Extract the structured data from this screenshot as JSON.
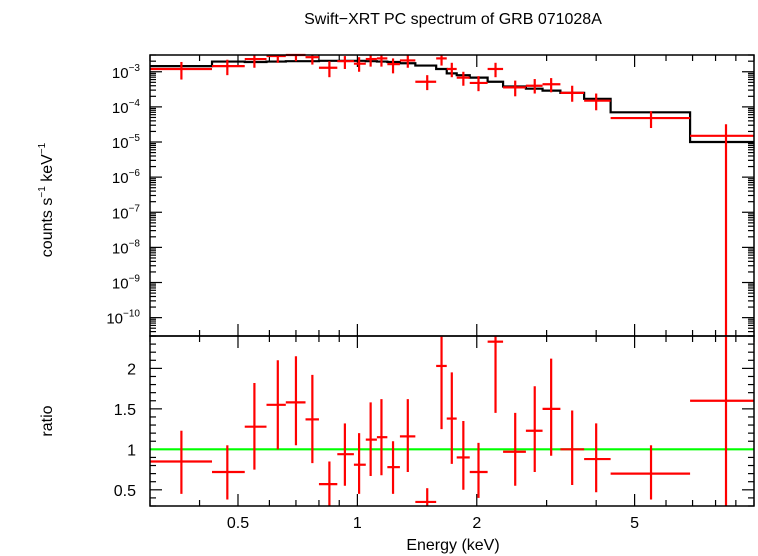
{
  "chart_data": [
    {
      "type": "scatter",
      "title": "Swift−XRT PC spectrum of GRB 071028A",
      "ylabel_base": "counts s",
      "ylabel_exp1": "−1",
      "ylabel_mid": " keV",
      "ylabel_exp2": "−1",
      "xscale": "log",
      "yscale": "log",
      "xlim": [
        0.3,
        10
      ],
      "ylim": [
        3e-11,
        0.003
      ],
      "y_ticks": [
        {
          "value": 0.001,
          "mant": "10",
          "exp": "−3"
        },
        {
          "value": 0.0001,
          "mant": "10",
          "exp": "−4"
        },
        {
          "value": 1e-05,
          "mant": "10",
          "exp": "−5"
        },
        {
          "value": 1e-06,
          "mant": "10",
          "exp": "−6"
        },
        {
          "value": 1e-07,
          "mant": "10",
          "exp": "−7"
        },
        {
          "value": 1e-08,
          "mant": "10",
          "exp": "−8"
        },
        {
          "value": 1e-09,
          "mant": "10",
          "exp": "−9"
        },
        {
          "value": 1e-10,
          "mant": "10",
          "exp": "−10"
        }
      ],
      "colors": {
        "data": "#ff0000",
        "model": "#000000"
      },
      "series": [
        {
          "kind": "data",
          "points": [
            {
              "x": 0.36,
              "xlo": 0.3,
              "xhi": 0.43,
              "y": 0.0012,
              "ylo": 0.0006,
              "yhi": 0.0019
            },
            {
              "x": 0.47,
              "xlo": 0.43,
              "xhi": 0.52,
              "y": 0.00145,
              "ylo": 0.0008,
              "yhi": 0.0022
            },
            {
              "x": 0.55,
              "xlo": 0.52,
              "xhi": 0.59,
              "y": 0.0023,
              "ylo": 0.0013,
              "yhi": 0.0032
            },
            {
              "x": 0.63,
              "xlo": 0.59,
              "xhi": 0.66,
              "y": 0.0028,
              "ylo": 0.0018,
              "yhi": 0.0036
            },
            {
              "x": 0.7,
              "xlo": 0.66,
              "xhi": 0.74,
              "y": 0.0031,
              "ylo": 0.002,
              "yhi": 0.004
            },
            {
              "x": 0.77,
              "xlo": 0.74,
              "xhi": 0.8,
              "y": 0.0026,
              "ylo": 0.0016,
              "yhi": 0.0034
            },
            {
              "x": 0.85,
              "xlo": 0.8,
              "xhi": 0.89,
              "y": 0.0013,
              "ylo": 0.0007,
              "yhi": 0.002
            },
            {
              "x": 0.93,
              "xlo": 0.89,
              "xhi": 0.98,
              "y": 0.002,
              "ylo": 0.0012,
              "yhi": 0.0028
            },
            {
              "x": 1.01,
              "xlo": 0.98,
              "xhi": 1.05,
              "y": 0.0017,
              "ylo": 0.001,
              "yhi": 0.0026
            },
            {
              "x": 1.08,
              "xlo": 1.05,
              "xhi": 1.12,
              "y": 0.0023,
              "ylo": 0.0014,
              "yhi": 0.0033
            },
            {
              "x": 1.15,
              "xlo": 1.12,
              "xhi": 1.19,
              "y": 0.0024,
              "ylo": 0.0014,
              "yhi": 0.0034
            },
            {
              "x": 1.23,
              "xlo": 1.19,
              "xhi": 1.28,
              "y": 0.00165,
              "ylo": 0.0009,
              "yhi": 0.0024
            },
            {
              "x": 1.34,
              "xlo": 1.28,
              "xhi": 1.4,
              "y": 0.0021,
              "ylo": 0.0013,
              "yhi": 0.003
            },
            {
              "x": 1.5,
              "xlo": 1.4,
              "xhi": 1.58,
              "y": 0.00052,
              "ylo": 0.0003,
              "yhi": 0.0008
            },
            {
              "x": 1.63,
              "xlo": 1.58,
              "xhi": 1.68,
              "y": 0.0024,
              "ylo": 0.0015,
              "yhi": 0.0034
            },
            {
              "x": 1.73,
              "xlo": 1.68,
              "xhi": 1.78,
              "y": 0.0012,
              "ylo": 0.0007,
              "yhi": 0.0018
            },
            {
              "x": 1.85,
              "xlo": 1.78,
              "xhi": 1.92,
              "y": 0.00068,
              "ylo": 0.0004,
              "yhi": 0.001
            },
            {
              "x": 2.02,
              "xlo": 1.92,
              "xhi": 2.13,
              "y": 0.00048,
              "ylo": 0.00028,
              "yhi": 0.00075
            },
            {
              "x": 2.23,
              "xlo": 2.13,
              "xhi": 2.33,
              "y": 0.0012,
              "ylo": 0.0007,
              "yhi": 0.0018
            },
            {
              "x": 2.5,
              "xlo": 2.33,
              "xhi": 2.66,
              "y": 0.00036,
              "ylo": 0.0002,
              "yhi": 0.00056
            },
            {
              "x": 2.8,
              "xlo": 2.66,
              "xhi": 2.93,
              "y": 0.0004,
              "ylo": 0.00024,
              "yhi": 0.00062
            },
            {
              "x": 3.08,
              "xlo": 2.93,
              "xhi": 3.25,
              "y": 0.00044,
              "ylo": 0.00026,
              "yhi": 0.00066
            },
            {
              "x": 3.48,
              "xlo": 3.25,
              "xhi": 3.73,
              "y": 0.00025,
              "ylo": 0.00014,
              "yhi": 0.0004
            },
            {
              "x": 4.0,
              "xlo": 3.73,
              "xhi": 4.35,
              "y": 0.00015,
              "ylo": 8e-05,
              "yhi": 0.00024
            },
            {
              "x": 5.5,
              "xlo": 4.35,
              "xhi": 6.9,
              "y": 4.8e-05,
              "ylo": 2.5e-05,
              "yhi": 7.5e-05
            },
            {
              "x": 8.5,
              "xlo": 6.9,
              "xhi": 10,
              "y": 1.5e-05,
              "ylo": 3e-11,
              "yhi": 3.2e-05
            }
          ]
        },
        {
          "kind": "model",
          "steps": [
            {
              "x0": 0.3,
              "x1": 0.43,
              "y": 0.00145
            },
            {
              "x0": 0.43,
              "x1": 0.52,
              "y": 0.00195
            },
            {
              "x0": 0.52,
              "x1": 0.59,
              "y": 0.0019
            },
            {
              "x0": 0.59,
              "x1": 0.66,
              "y": 0.00195
            },
            {
              "x0": 0.66,
              "x1": 0.74,
              "y": 0.002
            },
            {
              "x0": 0.74,
              "x1": 0.8,
              "y": 0.002
            },
            {
              "x0": 0.8,
              "x1": 0.89,
              "y": 0.00205
            },
            {
              "x0": 0.89,
              "x1": 0.98,
              "y": 0.00205
            },
            {
              "x0": 0.98,
              "x1": 1.05,
              "y": 0.00205
            },
            {
              "x0": 1.05,
              "x1": 1.12,
              "y": 0.002
            },
            {
              "x0": 1.12,
              "x1": 1.19,
              "y": 0.00195
            },
            {
              "x0": 1.19,
              "x1": 1.28,
              "y": 0.0019
            },
            {
              "x0": 1.28,
              "x1": 1.4,
              "y": 0.00175
            },
            {
              "x0": 1.4,
              "x1": 1.58,
              "y": 0.0015
            },
            {
              "x0": 1.58,
              "x1": 1.68,
              "y": 0.0012
            },
            {
              "x0": 1.68,
              "x1": 1.78,
              "y": 0.0009
            },
            {
              "x0": 1.78,
              "x1": 1.92,
              "y": 0.0008
            },
            {
              "x0": 1.92,
              "x1": 2.13,
              "y": 0.00068
            },
            {
              "x0": 2.13,
              "x1": 2.33,
              "y": 0.00052
            },
            {
              "x0": 2.33,
              "x1": 2.66,
              "y": 0.00038
            },
            {
              "x0": 2.66,
              "x1": 2.93,
              "y": 0.00033
            },
            {
              "x0": 2.93,
              "x1": 3.25,
              "y": 0.00029
            },
            {
              "x0": 3.25,
              "x1": 3.73,
              "y": 0.00025
            },
            {
              "x0": 3.73,
              "x1": 4.35,
              "y": 0.00017
            },
            {
              "x0": 4.35,
              "x1": 6.9,
              "y": 7e-05
            },
            {
              "x0": 6.9,
              "x1": 10,
              "y": 1e-05
            }
          ]
        }
      ]
    },
    {
      "type": "scatter",
      "xlabel": "Energy (keV)",
      "ylabel": "ratio",
      "xscale": "log",
      "xlim": [
        0.3,
        10
      ],
      "ylim": [
        0.3,
        2.4
      ],
      "x_ticks": [
        {
          "value": 0.5,
          "label": "0.5"
        },
        {
          "value": 1,
          "label": "1"
        },
        {
          "value": 2,
          "label": "2"
        },
        {
          "value": 5,
          "label": "5"
        }
      ],
      "y_ticks": [
        {
          "value": 0.5,
          "label": "0.5"
        },
        {
          "value": 1,
          "label": "1"
        },
        {
          "value": 1.5,
          "label": "1.5"
        },
        {
          "value": 2,
          "label": "2"
        }
      ],
      "reference_line": 1,
      "colors": {
        "data": "#ff0000",
        "reference": "#00ff00"
      },
      "series": [
        {
          "kind": "data",
          "points": [
            {
              "x": 0.36,
              "xlo": 0.3,
              "xhi": 0.43,
              "y": 0.85,
              "ylo": 0.45,
              "yhi": 1.23
            },
            {
              "x": 0.47,
              "xlo": 0.43,
              "xhi": 0.52,
              "y": 0.72,
              "ylo": 0.38,
              "yhi": 1.05
            },
            {
              "x": 0.55,
              "xlo": 0.52,
              "xhi": 0.59,
              "y": 1.28,
              "ylo": 0.75,
              "yhi": 1.82
            },
            {
              "x": 0.63,
              "xlo": 0.59,
              "xhi": 0.66,
              "y": 1.55,
              "ylo": 1.0,
              "yhi": 2.1
            },
            {
              "x": 0.7,
              "xlo": 0.66,
              "xhi": 0.74,
              "y": 1.58,
              "ylo": 1.05,
              "yhi": 2.15
            },
            {
              "x": 0.77,
              "xlo": 0.74,
              "xhi": 0.8,
              "y": 1.37,
              "ylo": 0.83,
              "yhi": 1.92
            },
            {
              "x": 0.85,
              "xlo": 0.8,
              "xhi": 0.89,
              "y": 0.57,
              "ylo": 0.3,
              "yhi": 0.85
            },
            {
              "x": 0.93,
              "xlo": 0.89,
              "xhi": 0.98,
              "y": 0.94,
              "ylo": 0.55,
              "yhi": 1.32
            },
            {
              "x": 1.01,
              "xlo": 0.98,
              "xhi": 1.05,
              "y": 0.81,
              "ylo": 0.45,
              "yhi": 1.2
            },
            {
              "x": 1.08,
              "xlo": 1.05,
              "xhi": 1.12,
              "y": 1.12,
              "ylo": 0.67,
              "yhi": 1.58
            },
            {
              "x": 1.15,
              "xlo": 1.12,
              "xhi": 1.19,
              "y": 1.15,
              "ylo": 0.68,
              "yhi": 1.62
            },
            {
              "x": 1.23,
              "xlo": 1.19,
              "xhi": 1.28,
              "y": 0.78,
              "ylo": 0.45,
              "yhi": 1.1
            },
            {
              "x": 1.34,
              "xlo": 1.28,
              "xhi": 1.4,
              "y": 1.16,
              "ylo": 0.72,
              "yhi": 1.62
            },
            {
              "x": 1.5,
              "xlo": 1.4,
              "xhi": 1.58,
              "y": 0.35,
              "ylo": 0.3,
              "yhi": 0.52
            },
            {
              "x": 1.63,
              "xlo": 1.58,
              "xhi": 1.68,
              "y": 2.03,
              "ylo": 1.25,
              "yhi": 2.4
            },
            {
              "x": 1.73,
              "xlo": 1.68,
              "xhi": 1.78,
              "y": 1.38,
              "ylo": 0.82,
              "yhi": 1.95
            },
            {
              "x": 1.85,
              "xlo": 1.78,
              "xhi": 1.92,
              "y": 0.9,
              "ylo": 0.5,
              "yhi": 1.35
            },
            {
              "x": 2.02,
              "xlo": 1.92,
              "xhi": 2.13,
              "y": 0.72,
              "ylo": 0.4,
              "yhi": 1.08
            },
            {
              "x": 2.23,
              "xlo": 2.13,
              "xhi": 2.33,
              "y": 2.33,
              "ylo": 1.45,
              "yhi": 2.4
            },
            {
              "x": 2.5,
              "xlo": 2.33,
              "xhi": 2.66,
              "y": 0.97,
              "ylo": 0.55,
              "yhi": 1.45
            },
            {
              "x": 2.8,
              "xlo": 2.66,
              "xhi": 2.93,
              "y": 1.23,
              "ylo": 0.72,
              "yhi": 1.78
            },
            {
              "x": 3.08,
              "xlo": 2.93,
              "xhi": 3.25,
              "y": 1.5,
              "ylo": 0.92,
              "yhi": 2.12
            },
            {
              "x": 3.48,
              "xlo": 3.25,
              "xhi": 3.73,
              "y": 1.0,
              "ylo": 0.56,
              "yhi": 1.48
            },
            {
              "x": 4.0,
              "xlo": 3.73,
              "xhi": 4.35,
              "y": 0.88,
              "ylo": 0.47,
              "yhi": 1.32
            },
            {
              "x": 5.5,
              "xlo": 4.35,
              "xhi": 6.9,
              "y": 0.7,
              "ylo": 0.38,
              "yhi": 1.05
            },
            {
              "x": 8.5,
              "xlo": 6.9,
              "xhi": 10,
              "y": 1.6,
              "ylo": 0.3,
              "yhi": 2.4
            }
          ]
        }
      ]
    }
  ]
}
